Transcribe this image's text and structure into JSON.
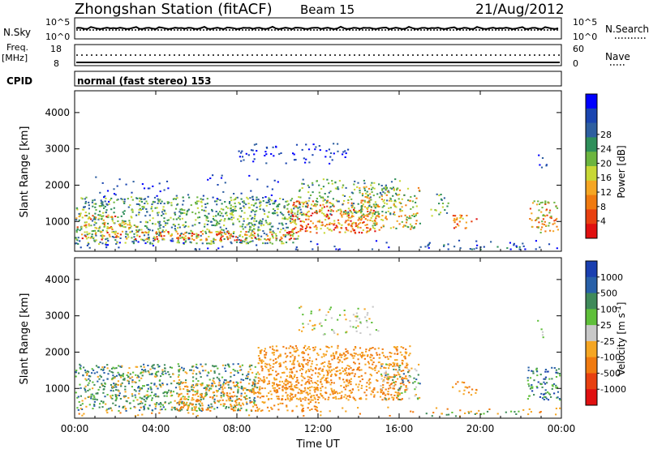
{
  "header": {
    "title": "Zhongshan Station (fitACF)",
    "beam": "Beam 15",
    "date": "21/Aug/2012"
  },
  "top_panels": {
    "nsky_label": "N.Sky",
    "nsearch_label": "N.Search",
    "nsky_ticks": [
      "10^5",
      "10^0"
    ],
    "nsearch_ticks": [
      "10^5",
      "10^0"
    ],
    "freq_label": "Freq.",
    "freq_unit": "[MHz]",
    "freq_ticks": [
      "18",
      "8"
    ],
    "nave_label": "Nave",
    "nave_ticks": [
      "60",
      "0"
    ],
    "cpid_label": "CPID",
    "cpid_text": "normal (fast stereo) 153"
  },
  "chart_data": [
    {
      "type": "heatmap",
      "name": "power",
      "ylabel": "Slant Range [km]",
      "y_ticks": [
        1000,
        2000,
        3000,
        4000
      ],
      "y_tick_labels": [
        "1000",
        "2000",
        "3000",
        "4000"
      ],
      "ylim": [
        180,
        4600
      ],
      "x_ticks": [
        0,
        4,
        8,
        12,
        16,
        20,
        24
      ],
      "xlim": [
        0,
        24
      ],
      "colorbar": {
        "label": "Power [dB]",
        "levels": [
          "4",
          "8",
          "12",
          "16",
          "20",
          "24",
          "28"
        ],
        "colors": [
          "#0000ff",
          "#1a45b0",
          "#2e5fa0",
          "#2f8f5a",
          "#6cb53f",
          "#c8d836",
          "#f5a623",
          "#f07a10",
          "#e84010",
          "#e01010"
        ]
      }
    },
    {
      "type": "heatmap",
      "name": "velocity",
      "ylabel": "Slant Range [km]",
      "y_ticks": [
        1000,
        2000,
        3000,
        4000
      ],
      "y_tick_labels": [
        "1000",
        "2000",
        "3000",
        "4000"
      ],
      "ylim": [
        180,
        4600
      ],
      "x_ticks": [
        0,
        4,
        8,
        12,
        16,
        20,
        24
      ],
      "x_tick_labels": [
        "00:00",
        "04:00",
        "08:00",
        "12:00",
        "16:00",
        "20:00",
        "00:00"
      ],
      "xlim": [
        0,
        24
      ],
      "xlabel": "Time UT",
      "colorbar": {
        "label": "Velocity [m s^-1]",
        "levels": [
          "1000",
          "500",
          "100",
          "25",
          "-25",
          "-100",
          "-500",
          "-1000"
        ],
        "colors": [
          "#1a3fb0",
          "#2860a8",
          "#3f8a5a",
          "#5fbf3a",
          "#c8c8c8",
          "#f5a623",
          "#f07a10",
          "#e84010",
          "#e01010"
        ]
      }
    }
  ]
}
